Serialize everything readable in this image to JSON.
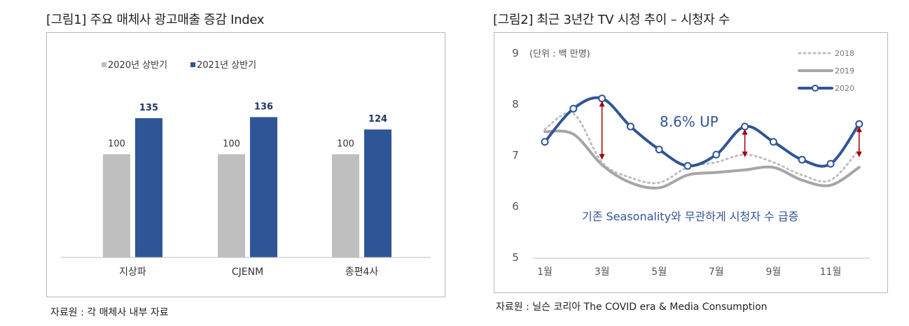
{
  "left": {
    "title": "[그림1] 주요 매체사 광고매출 증감 Index",
    "source": "자료원 : 각 매체사 내부 자료"
  },
  "right": {
    "title": "[그림2] 최근 3년간 TV 시청 추이 – 시청자 수",
    "source": "자료원 : 닐슨 코리아 The COVID era & Media Consumption",
    "unit_label": "(단위 : 백 만명)",
    "callout": "8.6% UP",
    "note": "기존 Seasonality와 무관하게 시청자 수 급증"
  },
  "colors": {
    "gray_bar": "#bfbfbf",
    "navy_bar": "#2f5597",
    "line2018": "#bfbfbf",
    "line2019": "#a6a6a6",
    "line2020": "#2f5597",
    "arrow": "#a00000",
    "text_blue": "#2f5597"
  },
  "chart_data": [
    {
      "type": "bar",
      "categories": [
        "지상파",
        "CJENM",
        "종편4사"
      ],
      "series": [
        {
          "name": "2020년 상반기",
          "values": [
            100,
            100,
            100
          ]
        },
        {
          "name": "2021년 상반기",
          "values": [
            135,
            136,
            124
          ]
        }
      ],
      "legend": "top-left",
      "grid": false
    },
    {
      "type": "line",
      "x": [
        1,
        2,
        3,
        4,
        5,
        6,
        7,
        8,
        9,
        10,
        11,
        12
      ],
      "x_tick_labels": [
        "1월",
        "3월",
        "5월",
        "7월",
        "9월",
        "11월"
      ],
      "ylim": [
        5,
        9
      ],
      "y_ticks": [
        5,
        6,
        7,
        8,
        9
      ],
      "series": [
        {
          "name": "2018",
          "style": "dotted",
          "values": [
            7.5,
            7.8,
            6.85,
            6.55,
            6.45,
            6.75,
            6.85,
            7.0,
            6.85,
            6.6,
            6.5,
            7.1
          ]
        },
        {
          "name": "2019",
          "style": "solid",
          "values": [
            7.45,
            7.4,
            6.8,
            6.45,
            6.35,
            6.6,
            6.65,
            6.7,
            6.75,
            6.5,
            6.4,
            6.75
          ]
        },
        {
          "name": "2020",
          "style": "solid-marker",
          "values": [
            7.25,
            7.9,
            8.1,
            7.55,
            7.1,
            6.78,
            7.0,
            7.55,
            7.25,
            6.9,
            6.82,
            7.6
          ]
        }
      ],
      "legend": "top-right",
      "grid": false
    }
  ]
}
